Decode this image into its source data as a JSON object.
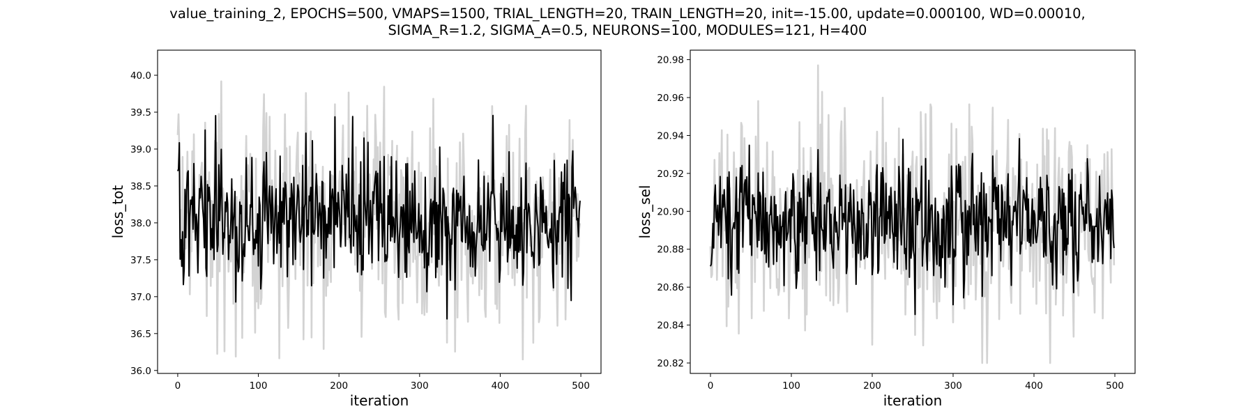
{
  "figure": {
    "title_line1": "value_training_2, EPOCHS=500, VMAPS=1500, TRIAL_LENGTH=20, TRAIN_LENGTH=20, init=-15.00, update=0.000100, WD=0.00010,",
    "title_line2": "SIGMA_R=1.2, SIGMA_A=0.5, NEURONS=100, MODULES=121, H=400"
  },
  "chart_data": [
    {
      "type": "line",
      "xlabel": "iteration",
      "ylabel": "loss_tot",
      "xlim": [
        -25,
        525
      ],
      "ylim": [
        35.96,
        40.34
      ],
      "xticks": [
        0,
        100,
        200,
        300,
        400,
        500
      ],
      "yticks": [
        36.0,
        36.5,
        37.0,
        37.5,
        38.0,
        38.5,
        39.0,
        39.5,
        40.0
      ],
      "ytick_format": 1,
      "grid": false,
      "colors": {
        "band": "#d3d3d3",
        "line": "#000000"
      },
      "x_start": 0,
      "x_step": 1,
      "n": 500,
      "y_center": 38.05,
      "y_mean_amplitude": 0.45,
      "y_band_amplitude": 0.55,
      "y_min_observed": 36.15,
      "y_max_observed": 40.15,
      "seed": 7
    },
    {
      "type": "line",
      "xlabel": "iteration",
      "ylabel": "loss_sel",
      "xlim": [
        -25,
        525
      ],
      "ylim": [
        20.8145,
        20.985
      ],
      "xticks": [
        0,
        100,
        200,
        300,
        400,
        500
      ],
      "yticks": [
        20.82,
        20.84,
        20.86,
        20.88,
        20.9,
        20.92,
        20.94,
        20.96,
        20.98
      ],
      "ytick_format": 2,
      "grid": false,
      "colors": {
        "band": "#d3d3d3",
        "line": "#000000"
      },
      "x_start": 0,
      "x_step": 1,
      "n": 500,
      "y_center": 20.895,
      "y_mean_amplitude": 0.017,
      "y_band_amplitude": 0.022,
      "y_min_observed": 20.82,
      "y_max_observed": 20.977,
      "y_first": 20.871,
      "seed": 13
    }
  ]
}
